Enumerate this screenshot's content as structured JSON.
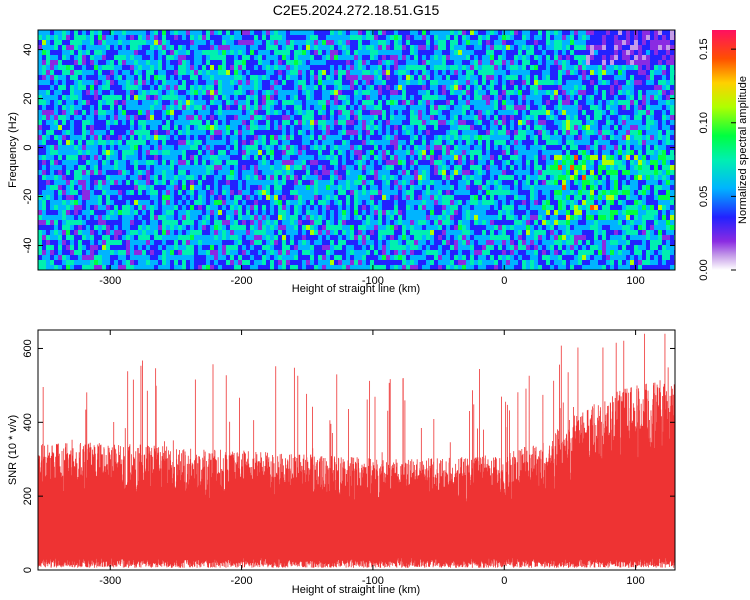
{
  "title": "C2E5.2024.272.18.51.G15",
  "chart_data": [
    {
      "type": "heatmap",
      "xlabel": "Height of straight line (km)",
      "ylabel": "Frequency (Hz)",
      "xlim": [
        -355,
        130
      ],
      "ylim": [
        -50,
        48
      ],
      "xticks": [
        -300,
        -200,
        -100,
        0,
        100
      ],
      "yticks": [
        -40,
        -20,
        0,
        20,
        40
      ],
      "colorbar": {
        "label": "Normalized spectral amplitude",
        "range": [
          0,
          0.163
        ],
        "ticks": [
          0.0,
          0.05,
          0.1,
          0.15
        ],
        "tick_labels": [
          "0.00",
          "0.05",
          "0.10",
          "0.15"
        ]
      },
      "description_values": {
        "typical_amplitude": 0.04,
        "hotspots_x_range": [
          30,
          130
        ],
        "hotspots_freq_range": [
          -30,
          0
        ]
      }
    },
    {
      "type": "area",
      "xlabel": "Height of straight line (km)",
      "ylabel": "SNR (10 * v/v)",
      "xlim": [
        -355,
        130
      ],
      "ylim": [
        0,
        650
      ],
      "xticks": [
        -300,
        -200,
        -100,
        0,
        100
      ],
      "yticks": [
        0,
        200,
        400,
        600
      ],
      "color": "#ee3333",
      "envelope": {
        "x": [
          -355,
          -300,
          -250,
          -200,
          -150,
          -100,
          -50,
          0,
          30,
          60,
          90,
          130
        ],
        "upper_typical": [
          330,
          330,
          320,
          310,
          300,
          290,
          290,
          300,
          340,
          420,
          470,
          500
        ],
        "lower_typical": [
          30,
          30,
          30,
          30,
          30,
          30,
          30,
          30,
          30,
          30,
          30,
          30
        ],
        "max_spike": 640
      }
    }
  ]
}
